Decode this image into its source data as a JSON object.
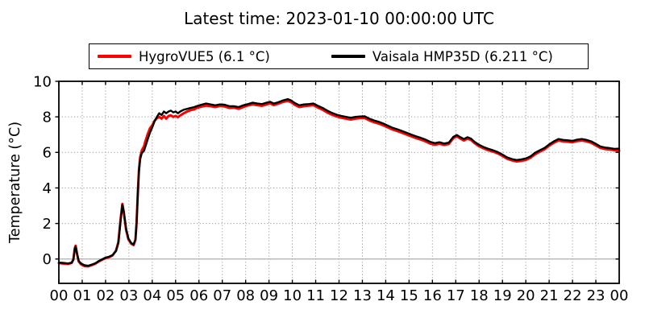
{
  "title": "Latest time: 2023-01-10 00:00:00 UTC",
  "legend": {
    "items": [
      {
        "label": "HygroVUE5 (6.1 °C)",
        "color": "#ff0000"
      },
      {
        "label": "Vaisala HMP35D (6.211 °C)",
        "color": "#000000"
      }
    ]
  },
  "chart_data": {
    "type": "line",
    "title": "Latest time: 2023-01-10 00:00:00 UTC",
    "xlabel": "",
    "ylabel": "Temperature (°C)",
    "xlim": [
      0,
      24
    ],
    "ylim": [
      -1.37,
      10
    ],
    "grid": true,
    "grid_style": "dotted",
    "legend_position": "top-outside",
    "x_tick_values": [
      0,
      1,
      2,
      3,
      4,
      5,
      6,
      7,
      8,
      9,
      10,
      11,
      12,
      13,
      14,
      15,
      16,
      17,
      18,
      19,
      20,
      21,
      22,
      23,
      24
    ],
    "x_tick_labels": [
      "00",
      "01",
      "02",
      "03",
      "04",
      "05",
      "06",
      "07",
      "08",
      "09",
      "10",
      "11",
      "12",
      "13",
      "14",
      "15",
      "16",
      "17",
      "18",
      "19",
      "20",
      "21",
      "22",
      "23",
      "00"
    ],
    "y_tick_values": [
      0,
      2,
      4,
      6,
      8,
      10
    ],
    "y_tick_labels": [
      "0",
      "2",
      "4",
      "6",
      "8",
      "10"
    ],
    "zero_line_value": 0,
    "colors": {
      "grid": "#999999",
      "zero_line": "#b0b0b0",
      "frame": "#000000"
    },
    "x": [
      0,
      0.2,
      0.4,
      0.55,
      0.62,
      0.68,
      0.72,
      0.78,
      0.85,
      0.95,
      1.1,
      1.25,
      1.4,
      1.55,
      1.7,
      1.85,
      2.0,
      2.15,
      2.3,
      2.45,
      2.55,
      2.65,
      2.72,
      2.78,
      2.88,
      2.98,
      3.1,
      3.2,
      3.28,
      3.33,
      3.38,
      3.43,
      3.48,
      3.55,
      3.65,
      3.7,
      3.8,
      3.9,
      4.0,
      4.1,
      4.2,
      4.3,
      4.4,
      4.5,
      4.6,
      4.7,
      4.8,
      4.9,
      5.0,
      5.1,
      5.2,
      5.35,
      5.5,
      5.65,
      5.8,
      5.9,
      6.1,
      6.3,
      6.5,
      6.7,
      6.9,
      7.1,
      7.3,
      7.5,
      7.7,
      7.9,
      8.1,
      8.3,
      8.5,
      8.7,
      8.9,
      9.05,
      9.2,
      9.4,
      9.6,
      9.8,
      9.95,
      10.1,
      10.3,
      10.5,
      10.7,
      10.9,
      11.1,
      11.3,
      11.5,
      11.7,
      11.9,
      12.1,
      12.3,
      12.5,
      12.7,
      12.9,
      13.1,
      13.3,
      13.5,
      13.7,
      13.9,
      14.1,
      14.3,
      14.5,
      14.7,
      14.9,
      15.1,
      15.3,
      15.5,
      15.7,
      15.9,
      16.1,
      16.3,
      16.5,
      16.7,
      16.9,
      17.05,
      17.2,
      17.35,
      17.5,
      17.65,
      17.8,
      18.0,
      18.2,
      18.4,
      18.6,
      18.8,
      19.0,
      19.2,
      19.4,
      19.6,
      19.8,
      20.0,
      20.2,
      20.4,
      20.6,
      20.8,
      21.0,
      21.2,
      21.4,
      21.6,
      21.8,
      22.0,
      22.2,
      22.4,
      22.6,
      22.8,
      23.0,
      23.2,
      23.4,
      23.6,
      23.8,
      24.0
    ],
    "series": [
      {
        "name": "HygroVUE5",
        "latest_value_label": "6.1 °C",
        "color": "#ff0000",
        "line_width": 3,
        "values": [
          -0.23,
          -0.26,
          -0.28,
          -0.22,
          -0.02,
          0.6,
          0.75,
          0.28,
          -0.14,
          -0.3,
          -0.4,
          -0.42,
          -0.35,
          -0.27,
          -0.15,
          -0.04,
          0.05,
          0.1,
          0.2,
          0.48,
          0.95,
          2.3,
          3.1,
          2.62,
          1.64,
          1.1,
          0.86,
          0.78,
          1.08,
          2.05,
          3.7,
          5.0,
          5.72,
          6.1,
          6.35,
          6.6,
          7.0,
          7.35,
          7.52,
          7.78,
          7.92,
          8.0,
          7.9,
          8.05,
          7.9,
          8.05,
          8.08,
          8.0,
          8.05,
          7.98,
          8.08,
          8.2,
          8.3,
          8.38,
          8.42,
          8.5,
          8.57,
          8.63,
          8.6,
          8.55,
          8.62,
          8.58,
          8.5,
          8.52,
          8.45,
          8.55,
          8.64,
          8.7,
          8.66,
          8.62,
          8.7,
          8.76,
          8.66,
          8.74,
          8.84,
          8.9,
          8.82,
          8.68,
          8.55,
          8.6,
          8.63,
          8.66,
          8.52,
          8.4,
          8.24,
          8.12,
          8.02,
          7.95,
          7.9,
          7.85,
          7.9,
          7.93,
          7.93,
          7.8,
          7.7,
          7.62,
          7.52,
          7.4,
          7.28,
          7.2,
          7.1,
          7.0,
          6.9,
          6.8,
          6.72,
          6.62,
          6.5,
          6.43,
          6.48,
          6.42,
          6.47,
          6.8,
          6.9,
          6.77,
          6.67,
          6.77,
          6.7,
          6.52,
          6.34,
          6.22,
          6.12,
          6.04,
          5.94,
          5.8,
          5.64,
          5.55,
          5.49,
          5.52,
          5.58,
          5.7,
          5.9,
          6.04,
          6.17,
          6.37,
          6.54,
          6.67,
          6.62,
          6.6,
          6.57,
          6.64,
          6.67,
          6.62,
          6.54,
          6.4,
          6.25,
          6.19,
          6.16,
          6.12,
          6.1
        ]
      },
      {
        "name": "Vaisala HMP35D",
        "latest_value_label": "6.211 °C",
        "color": "#000000",
        "line_width": 2.4,
        "values": [
          -0.2,
          -0.22,
          -0.25,
          -0.2,
          -0.05,
          0.55,
          0.7,
          0.3,
          -0.1,
          -0.25,
          -0.35,
          -0.38,
          -0.32,
          -0.25,
          -0.12,
          -0.02,
          0.08,
          0.13,
          0.22,
          0.45,
          0.9,
          2.2,
          3.05,
          2.7,
          1.7,
          1.15,
          0.9,
          0.82,
          1.1,
          2.0,
          3.6,
          4.9,
          5.6,
          5.95,
          6.1,
          6.3,
          6.7,
          7.1,
          7.4,
          7.75,
          8.0,
          8.2,
          8.1,
          8.3,
          8.2,
          8.3,
          8.35,
          8.25,
          8.3,
          8.2,
          8.3,
          8.4,
          8.45,
          8.5,
          8.55,
          8.6,
          8.68,
          8.75,
          8.7,
          8.65,
          8.7,
          8.68,
          8.6,
          8.6,
          8.55,
          8.65,
          8.72,
          8.8,
          8.75,
          8.72,
          8.8,
          8.85,
          8.75,
          8.82,
          8.92,
          9.0,
          8.92,
          8.78,
          8.65,
          8.7,
          8.72,
          8.75,
          8.62,
          8.5,
          8.35,
          8.22,
          8.12,
          8.05,
          8.0,
          7.95,
          8.0,
          8.02,
          8.03,
          7.9,
          7.8,
          7.72,
          7.62,
          7.5,
          7.38,
          7.3,
          7.2,
          7.1,
          7.0,
          6.9,
          6.82,
          6.72,
          6.6,
          6.52,
          6.57,
          6.5,
          6.55,
          6.88,
          6.98,
          6.85,
          6.75,
          6.85,
          6.78,
          6.6,
          6.42,
          6.3,
          6.2,
          6.12,
          6.02,
          5.88,
          5.72,
          5.63,
          5.57,
          5.6,
          5.66,
          5.78,
          5.98,
          6.12,
          6.25,
          6.45,
          6.62,
          6.75,
          6.7,
          6.68,
          6.65,
          6.72,
          6.75,
          6.7,
          6.62,
          6.48,
          6.33,
          6.27,
          6.24,
          6.2,
          6.211
        ]
      }
    ]
  }
}
